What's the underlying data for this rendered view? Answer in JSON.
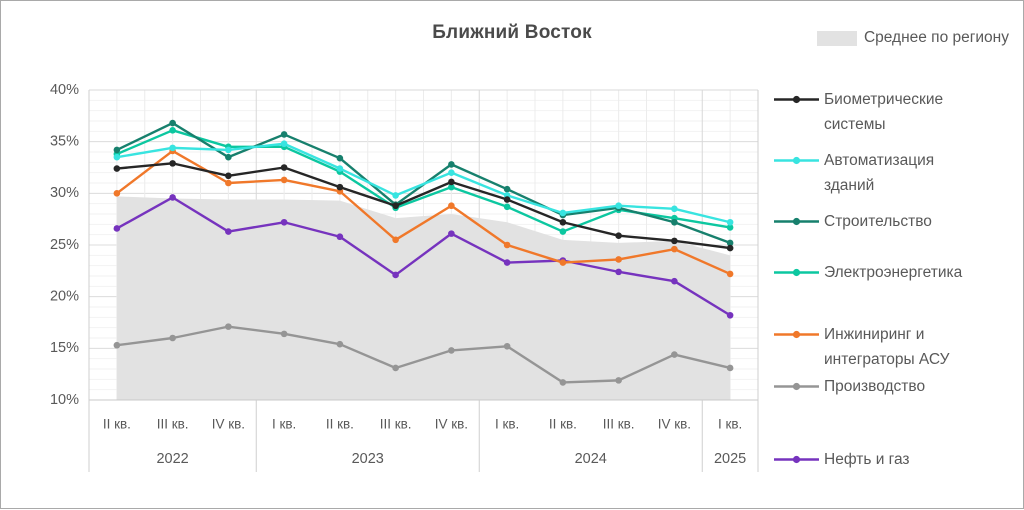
{
  "title": "Ближний Восток",
  "top_legend": {
    "label": "Среднее по региону",
    "swatch_color": "#e2e2e2"
  },
  "chart_data": {
    "type": "line",
    "title": "Ближний Восток",
    "legend_position": "right",
    "grid": true,
    "y_axis": {
      "min": 10,
      "max": 40,
      "major_step": 5,
      "minor_step": 1,
      "unit": "%"
    },
    "x_axis": {
      "quarter_labels": [
        "II кв.",
        "III кв.",
        "IV кв.",
        "I кв.",
        "II кв.",
        "III кв.",
        "IV кв.",
        "I кв.",
        "II кв.",
        "III кв.",
        "IV кв.",
        "I кв."
      ],
      "year_groups": [
        {
          "label": "2022",
          "quarters": 3
        },
        {
          "label": "2023",
          "quarters": 4
        },
        {
          "label": "2024",
          "quarters": 4
        },
        {
          "label": "2025",
          "quarters": 1
        }
      ],
      "categories": [
        "II кв. 2022",
        "III кв. 2022",
        "IV кв. 2022",
        "I кв. 2023",
        "II кв. 2023",
        "III кв. 2023",
        "IV кв. 2023",
        "I кв. 2024",
        "II кв. 2024",
        "III кв. 2024",
        "IV кв. 2024",
        "I кв. 2025"
      ]
    },
    "area_series": {
      "name": "Среднее по региону",
      "color": "#e2e2e2",
      "values": [
        29.7,
        29.5,
        29.4,
        29.4,
        29.3,
        27.6,
        28.0,
        27.2,
        25.5,
        25.2,
        25.4,
        24.0
      ]
    },
    "series": [
      {
        "name": "Биометрические системы",
        "legend_lines": [
          "Биометрические",
          "системы"
        ],
        "color": "#262626",
        "values": [
          32.4,
          32.9,
          31.7,
          32.5,
          30.6,
          28.8,
          31.1,
          29.4,
          27.2,
          25.9,
          25.4,
          24.7
        ]
      },
      {
        "name": "Автоматизация зданий",
        "legend_lines": [
          "Автоматизация",
          "зданий"
        ],
        "color": "#38e4e0",
        "values": [
          33.5,
          34.4,
          34.2,
          34.8,
          32.4,
          29.8,
          32.0,
          29.8,
          28.1,
          28.8,
          28.5,
          27.2
        ]
      },
      {
        "name": "Строительство",
        "legend_lines": [
          "Строительство"
        ],
        "color": "#17806d",
        "values": [
          34.2,
          36.8,
          33.5,
          35.7,
          33.4,
          28.9,
          32.8,
          30.4,
          27.9,
          28.6,
          27.2,
          25.2
        ]
      },
      {
        "name": "Электроэнергетика",
        "legend_lines": [
          "Электроэнергетика"
        ],
        "color": "#0cc7a0",
        "values": [
          33.8,
          36.1,
          34.5,
          34.5,
          32.1,
          28.6,
          30.6,
          28.7,
          26.3,
          28.4,
          27.6,
          26.7
        ]
      },
      {
        "name": "Инжиниринг и интеграторы АСУ",
        "legend_lines": [
          "Инжиниринг и",
          "интеграторы АСУ"
        ],
        "color": "#f0782a",
        "values": [
          30.0,
          34.1,
          31.0,
          31.3,
          30.2,
          25.5,
          28.8,
          25.0,
          23.3,
          23.6,
          24.6,
          22.2
        ]
      },
      {
        "name": "Производство",
        "legend_lines": [
          "Производство"
        ],
        "color": "#959595",
        "values": [
          15.3,
          16.0,
          17.1,
          16.4,
          15.4,
          13.1,
          14.8,
          15.2,
          11.7,
          11.9,
          14.4,
          13.1
        ]
      },
      {
        "name": "Нефть и газ",
        "legend_lines": [
          "Нефть и газ"
        ],
        "color": "#7633be",
        "values": [
          26.6,
          29.6,
          26.3,
          27.2,
          25.8,
          22.1,
          26.1,
          23.3,
          23.5,
          22.4,
          21.5,
          18.2
        ]
      }
    ]
  }
}
